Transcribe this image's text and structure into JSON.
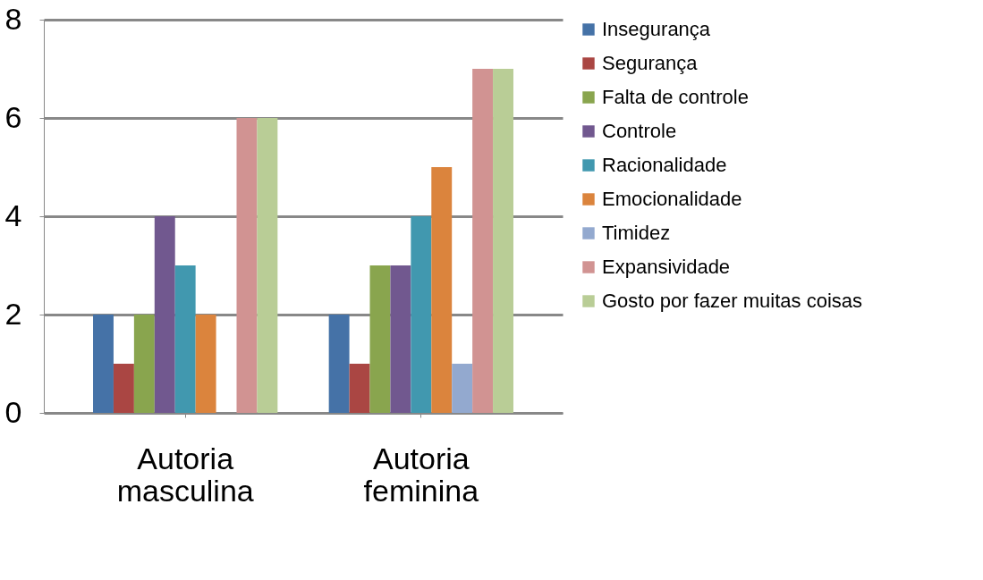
{
  "chart_data": {
    "type": "bar",
    "categories": [
      "Autoria masculina",
      "Autoria feminina"
    ],
    "series": [
      {
        "name": "Insegurança",
        "color": "#4572a7",
        "values": [
          2,
          2
        ]
      },
      {
        "name": "Segurança",
        "color": "#aa4643",
        "values": [
          1,
          1
        ]
      },
      {
        "name": "Falta de controle",
        "color": "#89a54e",
        "values": [
          2,
          3
        ]
      },
      {
        "name": "Controle",
        "color": "#71588f",
        "values": [
          4,
          3
        ]
      },
      {
        "name": "Racionalidade",
        "color": "#4198af",
        "values": [
          3,
          4
        ]
      },
      {
        "name": "Emocionalidade",
        "color": "#db843d",
        "values": [
          2,
          5
        ]
      },
      {
        "name": "Timidez",
        "color": "#93a9cf",
        "values": [
          0,
          1
        ]
      },
      {
        "name": "Expansividade",
        "color": "#d19392",
        "values": [
          6,
          7
        ]
      },
      {
        "name": "Gosto por fazer muitas coisas",
        "color": "#b9cd96",
        "values": [
          6,
          7
        ]
      }
    ],
    "ylim": [
      0,
      8
    ],
    "yticks": [
      0,
      2,
      4,
      6,
      8
    ],
    "grid": "y",
    "legend": "right"
  }
}
